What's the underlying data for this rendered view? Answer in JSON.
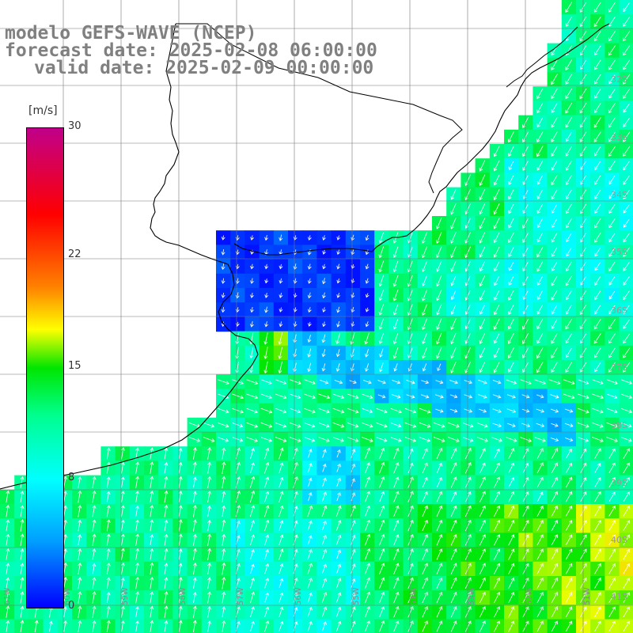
{
  "title": {
    "line1": "modelo GEFS-WAVE (NCEP)",
    "line2": "forecast date: 2025-02-08 06:00:00",
    "line3": "valid date: 2025-02-09 00:00:00"
  },
  "colorbar": {
    "unit": "[m/s]",
    "min": 0,
    "max": 30,
    "ticks": [
      "30",
      "22",
      "15",
      "8",
      "0"
    ],
    "tick_values": [
      30,
      22,
      15,
      8,
      0
    ]
  },
  "grid": {
    "lat_labels": [
      "32S",
      "33S",
      "34S",
      "35S",
      "36S",
      "37S",
      "38S",
      "39S",
      "40S",
      "41S"
    ],
    "lon_labels": [
      "61W",
      "60W",
      "59W",
      "58W",
      "57W",
      "56W",
      "55W",
      "54W",
      "53W",
      "52W",
      "51W"
    ]
  },
  "colors": {
    "land": "#ffffff",
    "coast": "#000000",
    "gridline": "#777777",
    "arrow": "#ffffff"
  }
}
